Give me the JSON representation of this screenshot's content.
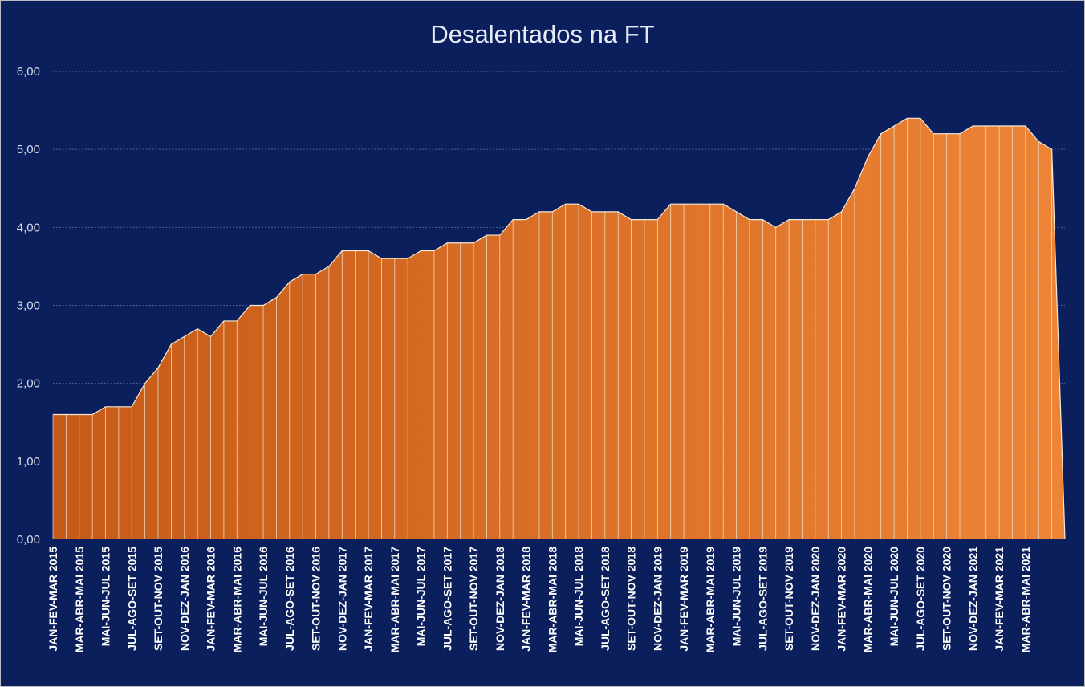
{
  "colors": {
    "background": "#0b1f5c",
    "gridline": "#4a5d96",
    "area_fill_start": "#c65a17",
    "area_fill_end": "#ee8436",
    "area_stroke": "#f4ead8",
    "axis_text": "#d6dbe8"
  },
  "chart_data": {
    "type": "area",
    "title": "Desalentados na FT",
    "xlabel": "",
    "ylabel": "",
    "ylim": [
      0,
      6
    ],
    "yticks": [
      "0,00",
      "1,00",
      "2,00",
      "3,00",
      "4,00",
      "5,00",
      "6,00"
    ],
    "grid": true,
    "legend": "none",
    "x_ticks": [
      {
        "index": 0,
        "label": "JAN-FEV-MAR 2015"
      },
      {
        "index": 2,
        "label": "MAR-ABR-MAI 2015"
      },
      {
        "index": 4,
        "label": "MAI-JUN-JUL 2015"
      },
      {
        "index": 6,
        "label": "JUL-AGO-SET 2015"
      },
      {
        "index": 8,
        "label": "SET-OUT-NOV 2015"
      },
      {
        "index": 10,
        "label": "NOV-DEZ-JAN 2016"
      },
      {
        "index": 12,
        "label": "JAN-FEV-MAR 2016"
      },
      {
        "index": 14,
        "label": "MAR-ABR-MAI 2016"
      },
      {
        "index": 16,
        "label": "MAI-JUN-JUL 2016"
      },
      {
        "index": 18,
        "label": "JUL-AGO-SET 2016"
      },
      {
        "index": 20,
        "label": "SET-OUT-NOV 2016"
      },
      {
        "index": 22,
        "label": "NOV-DEZ-JAN 2017"
      },
      {
        "index": 24,
        "label": "JAN-FEV-MAR 2017"
      },
      {
        "index": 26,
        "label": "MAR-ABR-MAI 2017"
      },
      {
        "index": 28,
        "label": "MAI-JUN-JUL 2017"
      },
      {
        "index": 30,
        "label": "JUL-AGO-SET 2017"
      },
      {
        "index": 32,
        "label": "SET-OUT-NOV 2017"
      },
      {
        "index": 34,
        "label": "NOV-DEZ-JAN 2018"
      },
      {
        "index": 36,
        "label": "JAN-FEV-MAR 2018"
      },
      {
        "index": 38,
        "label": "MAR-ABR-MAI 2018"
      },
      {
        "index": 40,
        "label": "MAI-JUN-JUL 2018"
      },
      {
        "index": 42,
        "label": "JUL-AGO-SET 2018"
      },
      {
        "index": 44,
        "label": "SET-OUT-NOV 2018"
      },
      {
        "index": 46,
        "label": "NOV-DEZ-JAN 2019"
      },
      {
        "index": 48,
        "label": "JAN-FEV-MAR 2019"
      },
      {
        "index": 50,
        "label": "MAR-ABR-MAI 2019"
      },
      {
        "index": 52,
        "label": "MAI-JUN-JUL 2019"
      },
      {
        "index": 54,
        "label": "JUL-AGO-SET 2019"
      },
      {
        "index": 56,
        "label": "SET-OUT-NOV 2019"
      },
      {
        "index": 58,
        "label": "NOV-DEZ-JAN 2020"
      },
      {
        "index": 60,
        "label": "JAN-FEV-MAR 2020"
      },
      {
        "index": 62,
        "label": "MAR-ABR-MAI 2020"
      },
      {
        "index": 64,
        "label": "MAI-JUN-JUL 2020"
      },
      {
        "index": 66,
        "label": "JUL-AGO-SET 2020"
      },
      {
        "index": 68,
        "label": "SET-OUT-NOV 2020"
      },
      {
        "index": 70,
        "label": "NOV-DEZ-JAN 2021"
      },
      {
        "index": 72,
        "label": "JAN-FEV-MAR 2021"
      },
      {
        "index": 74,
        "label": "MAR-ABR-MAI 2021"
      }
    ],
    "values": [
      1.6,
      1.6,
      1.6,
      1.6,
      1.7,
      1.7,
      1.7,
      2.0,
      2.2,
      2.5,
      2.6,
      2.7,
      2.6,
      2.8,
      2.8,
      3.0,
      3.0,
      3.1,
      3.3,
      3.4,
      3.4,
      3.5,
      3.7,
      3.7,
      3.7,
      3.6,
      3.6,
      3.6,
      3.7,
      3.7,
      3.8,
      3.8,
      3.8,
      3.9,
      3.9,
      4.1,
      4.1,
      4.2,
      4.2,
      4.3,
      4.3,
      4.2,
      4.2,
      4.2,
      4.1,
      4.1,
      4.1,
      4.3,
      4.3,
      4.3,
      4.3,
      4.3,
      4.2,
      4.1,
      4.1,
      4.0,
      4.1,
      4.1,
      4.1,
      4.1,
      4.2,
      4.5,
      4.9,
      5.2,
      5.3,
      5.4,
      5.4,
      5.2,
      5.2,
      5.2,
      5.3,
      5.3,
      5.3,
      5.3,
      5.3,
      5.1,
      5.0,
      0.0
    ]
  }
}
